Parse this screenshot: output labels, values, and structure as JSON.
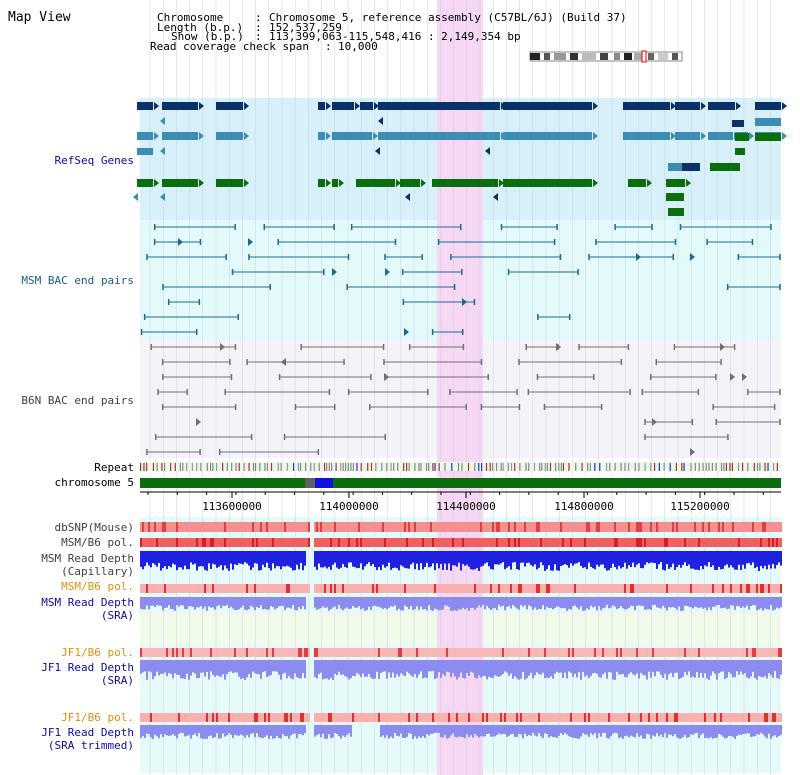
{
  "view_title": "Map View",
  "header": {
    "chromosome_key": "Chromosome",
    "chromosome_value": "Chromosome 5, reference assembly (C57BL/6J) (Build 37)",
    "length_key": "Length (b.p.)",
    "length_value": "152,537,259",
    "show_key": "Show (b.p.)",
    "show_value": "113,399,063-115,548,416 : 2,149,354 bp",
    "span_key": "Read coverage check span",
    "span_value": "10,000"
  },
  "tracks": {
    "refseq": "RefSeq Genes",
    "msm_bac": "MSM BAC end pairs",
    "b6n_bac": "B6N BAC end pairs",
    "repeat": "Repeat",
    "chromosome": "chromosome 5",
    "dbsnp": "dbSNP(Mouse)",
    "msm_b6_pol_1": "MSM/B6 pol.",
    "msm_read_depth_cap_1": "MSM Read Depth",
    "msm_read_depth_cap_2": "(Capillary)",
    "msm_b6_pol_2": "MSM/B6 pol.",
    "msm_read_depth_sra_1": "MSM Read Depth",
    "msm_read_depth_sra_2": "(SRA)",
    "jf1_b6_pol_1": "JF1/B6 pol.",
    "jf1_read_depth_sra_1": "JF1 Read Depth",
    "jf1_read_depth_sra_2": "(SRA)",
    "jf1_b6_pol_2": "JF1/B6 pol.",
    "jf1_read_depth_trim_1": "JF1 Read Depth",
    "jf1_read_depth_trim_2": "(SRA trimmed)"
  },
  "ruler": {
    "ticks": [
      "113600000",
      "114000000",
      "114400000",
      "114800000",
      "115200000"
    ]
  },
  "colors": {
    "refseq_bg": "#d8f0fa",
    "msm_bac_bg": "#e4fafa",
    "b6n_bac_bg": "#f4f4f8",
    "highlight": "#f6d8f4",
    "gene_dark": "#0a3268",
    "gene_mid": "#3c8cb4",
    "gene_green": "#0a6e0a",
    "bac_teal": "#1d6a90",
    "bac_grey": "#707070",
    "snp_red": "#f07070",
    "depth_blue": "#2020e0",
    "depth_lav": "#8c8cf0"
  }
}
